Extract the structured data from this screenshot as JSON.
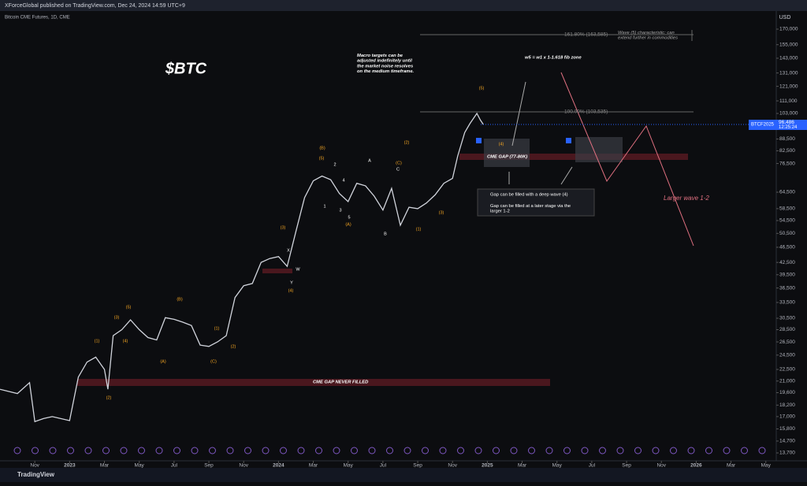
{
  "header": {
    "publisher": "XForceGlobal published on TradingView.com, Dec 24, 2024 14:59 UTC+9",
    "footer": "TradingView"
  },
  "chart_data": {
    "type": "line",
    "title": "$BTC",
    "subtitle": "Bitcoin CME Futures, 1D, CME",
    "currency": "USD",
    "log_scale": true,
    "color": "#d1d4dc",
    "x": [
      -4,
      -3,
      -2.3,
      -2,
      -1.5,
      -1,
      0,
      0.5,
      1,
      1.5,
      2,
      2.2,
      2.5,
      3,
      3.5,
      4,
      4.5,
      5,
      5.5,
      6,
      6.5,
      7,
      7.5,
      8,
      8.5,
      9,
      9.5,
      10,
      10.5,
      11,
      11.5,
      12,
      12.5,
      13,
      13.5,
      14,
      14.5,
      15,
      15.5,
      16,
      16.5,
      17,
      17.5,
      18,
      18.5,
      19,
      19.5,
      20,
      20.5,
      21,
      21.5,
      22,
      22.3,
      22.7,
      23,
      23.4,
      23.6,
      23.77
    ],
    "values": [
      20000,
      19500,
      20800,
      16500,
      16800,
      17000,
      16600,
      21500,
      23500,
      24200,
      22500,
      20000,
      27500,
      28500,
      30200,
      28500,
      27200,
      26800,
      30600,
      30300,
      29800,
      29200,
      26000,
      25800,
      26500,
      27500,
      34500,
      37000,
      37500,
      42500,
      43500,
      44000,
      41500,
      51000,
      62500,
      69000,
      71000,
      69500,
      64000,
      61000,
      68000,
      67000,
      63000,
      58000,
      66000,
      53000,
      59000,
      58500,
      60500,
      63500,
      68000,
      70000,
      80000,
      92000,
      97000,
      103000,
      99000,
      96486
    ],
    "last_price": {
      "value": 96486,
      "label": "96,486"
    },
    "symbol": "BTCF2025",
    "countdown": "12:25:24",
    "xlim": [
      -4,
      40.6
    ],
    "ylim": [
      13073,
      185800
    ],
    "xticks": [
      {
        "value": -2,
        "label": "Nov"
      },
      {
        "value": 0,
        "label": "2023"
      },
      {
        "value": 2,
        "label": "Mar"
      },
      {
        "value": 4,
        "label": "May"
      },
      {
        "value": 6,
        "label": "Jul"
      },
      {
        "value": 8,
        "label": "Sep"
      },
      {
        "value": 10,
        "label": "Nov"
      },
      {
        "value": 12,
        "label": "2024"
      },
      {
        "value": 14,
        "label": "Mar"
      },
      {
        "value": 16,
        "label": "May"
      },
      {
        "value": 18,
        "label": "Jul"
      },
      {
        "value": 20,
        "label": "Sep"
      },
      {
        "value": 22,
        "label": "Nov"
      },
      {
        "value": 24,
        "label": "2025"
      },
      {
        "value": 26,
        "label": "Mar"
      },
      {
        "value": 28,
        "label": "May"
      },
      {
        "value": 30,
        "label": "Jul"
      },
      {
        "value": 32,
        "label": "Sep"
      },
      {
        "value": 34,
        "label": "Nov"
      },
      {
        "value": 36,
        "label": "2026"
      },
      {
        "value": 38,
        "label": "Mar"
      },
      {
        "value": 40,
        "label": "May"
      }
    ],
    "yticks": [
      {
        "value": 13700,
        "label": "13,700"
      },
      {
        "value": 14700,
        "label": "14,700"
      },
      {
        "value": 15800,
        "label": "15,800"
      },
      {
        "value": 17000,
        "label": "17,000"
      },
      {
        "value": 18200,
        "label": "18,200"
      },
      {
        "value": 19600,
        "label": "19,600"
      },
      {
        "value": 21000,
        "label": "21,000"
      },
      {
        "value": 22500,
        "label": "22,500"
      },
      {
        "value": 24500,
        "label": "24,500"
      },
      {
        "value": 26500,
        "label": "26,500"
      },
      {
        "value": 28500,
        "label": "28,500"
      },
      {
        "value": 30500,
        "label": "30,500"
      },
      {
        "value": 33500,
        "label": "33,500"
      },
      {
        "value": 36500,
        "label": "36,500"
      },
      {
        "value": 39500,
        "label": "39,500"
      },
      {
        "value": 42500,
        "label": "42,500"
      },
      {
        "value": 46500,
        "label": "46,500"
      },
      {
        "value": 50500,
        "label": "50,500"
      },
      {
        "value": 54500,
        "label": "54,500"
      },
      {
        "value": 58500,
        "label": "58,500"
      },
      {
        "value": 64500,
        "label": "64,500"
      },
      {
        "value": 76500,
        "label": "76,500"
      },
      {
        "value": 82500,
        "label": "82,500"
      },
      {
        "value": 88500,
        "label": "88,500"
      },
      {
        "value": 103000,
        "label": "103,000"
      },
      {
        "value": 111000,
        "label": "111,000"
      },
      {
        "value": 121000,
        "label": "121,000"
      },
      {
        "value": 131000,
        "label": "131,000"
      },
      {
        "value": 143000,
        "label": "143,000"
      },
      {
        "value": 155000,
        "label": "155,000"
      },
      {
        "value": 170000,
        "label": "170,000"
      }
    ],
    "annotations": [
      "Macro targets can be adjusted indefinitely until the market noise resolves on the medium timeframe.",
      "w5 = w1 x 1-1.618 fib zone",
      "Wave (5) characteristic: can extend further in commodities",
      "161.80% (163,585)",
      "100.00% (103,535)",
      "CME GAP (77-80K)",
      "CME GAP NEVER FILLED",
      "Gap can be filled with a deep wave (4)",
      "Gap can be filled at a later stage via the larger 1-2",
      "Larger wave 1-2"
    ],
    "wave_labels": [
      "(1)",
      "(2)",
      "(3)",
      "(4)",
      "(5)",
      "(A)",
      "(B)",
      "(C)",
      "(1)",
      "(2)",
      "(3)",
      "(4)",
      "(5)",
      "(A)",
      "(B)",
      "(C)",
      "(1)",
      "(2)",
      "(3)",
      "(4)",
      "(5)",
      "W",
      "X",
      "Y",
      "1",
      "2",
      "3",
      "4",
      "5",
      "A",
      "B",
      "C"
    ]
  }
}
